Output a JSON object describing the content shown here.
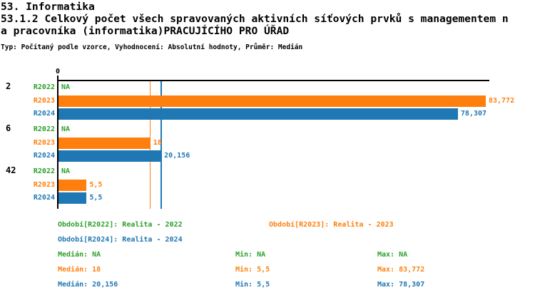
{
  "header": {
    "section_title": "53. Informatika",
    "title_line1": "53.1.2 Celkový počet všech spravovaných aktivních síťových prvků s managementem n",
    "title_line2": "a pracovníka (informatika)PRACUJÍCÍHO PRO ÚŘAD",
    "meta": "Typ: Počítaný podle vzorce, Vyhodnocení: Absolutní hodnoty, Průměr: Medián"
  },
  "colors": {
    "R2022": "#2ca02c",
    "R2023": "#ff7f0e",
    "R2024": "#1f77b4",
    "axis": "#000000"
  },
  "chart_data": {
    "type": "bar",
    "orientation": "horizontal",
    "x_axis": {
      "tick_label": "0",
      "min": 0,
      "max": 84.5,
      "grid": false
    },
    "series_names": [
      "R2022",
      "R2023",
      "R2024"
    ],
    "groups": [
      {
        "label": "2",
        "rows": [
          {
            "series": "R2022",
            "value": null,
            "display": "NA"
          },
          {
            "series": "R2023",
            "value": 83.772,
            "display": "83,772"
          },
          {
            "series": "R2024",
            "value": 78.307,
            "display": "78,307"
          }
        ]
      },
      {
        "label": "6",
        "rows": [
          {
            "series": "R2022",
            "value": null,
            "display": "NA"
          },
          {
            "series": "R2023",
            "value": 18,
            "display": "18"
          },
          {
            "series": "R2024",
            "value": 20.156,
            "display": "20,156"
          }
        ]
      },
      {
        "label": "42",
        "rows": [
          {
            "series": "R2022",
            "value": null,
            "display": "NA"
          },
          {
            "series": "R2023",
            "value": 5.5,
            "display": "5,5"
          },
          {
            "series": "R2024",
            "value": 5.5,
            "display": "5,5"
          }
        ]
      }
    ],
    "reference_lines": [
      {
        "series": "R2023",
        "value": 18
      },
      {
        "series": "R2024",
        "value": 20.156
      }
    ],
    "summary": [
      {
        "series": "R2022",
        "median": null,
        "min": null,
        "max": null
      },
      {
        "series": "R2023",
        "median": 18,
        "min": 5.5,
        "max": 83.772
      },
      {
        "series": "R2024",
        "median": 20.156,
        "min": 5.5,
        "max": 78.307
      }
    ]
  },
  "legend": {
    "periods": [
      {
        "series": "R2022",
        "label": "Období[R2022]: Realita - 2022"
      },
      {
        "series": "R2023",
        "label": "Období[R2023]: Realita - 2023"
      },
      {
        "series": "R2024",
        "label": "Období[R2024]: Realita - 2024"
      }
    ],
    "stats": [
      {
        "series": "R2022",
        "median": "Medián: NA",
        "min": "Min: NA",
        "max": "Max: NA"
      },
      {
        "series": "R2023",
        "median": "Medián: 18",
        "min": "Min: 5,5",
        "max": "Max: 83,772"
      },
      {
        "series": "R2024",
        "median": "Medián: 20,156",
        "min": "Min: 5,5",
        "max": "Max: 78,307"
      }
    ]
  }
}
